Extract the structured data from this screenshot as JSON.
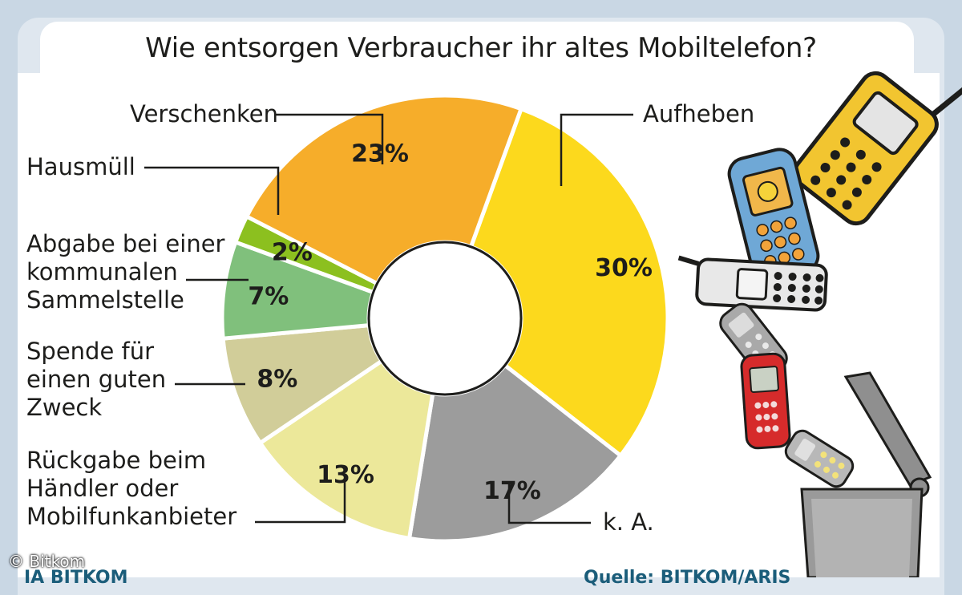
{
  "title": "Wie entsorgen Verbraucher ihr altes Mobiltelefon?",
  "chart_data": {
    "type": "pie",
    "style": "donut",
    "title": "Wie entsorgen Verbraucher ihr altes Mobiltelefon?",
    "slices": [
      {
        "label": "Aufheben",
        "value": 30,
        "value_label": "30%",
        "color": "#fcd91d"
      },
      {
        "label": "k. A.",
        "value": 17,
        "value_label": "17%",
        "color": "#9c9c9c"
      },
      {
        "label": "Rückgabe beim Händler oder Mobilfunkanbieter",
        "value": 13,
        "value_label": "13%",
        "color": "#ece89a"
      },
      {
        "label": "Spende für einen guten Zweck",
        "value": 8,
        "value_label": "8%",
        "color": "#d1cd99"
      },
      {
        "label": "Abgabe bei einer kommunalen Sammelstelle",
        "value": 7,
        "value_label": "7%",
        "color": "#80c07c"
      },
      {
        "label": "Hausmüll",
        "value": 2,
        "value_label": "2%",
        "color": "#8cc01f"
      },
      {
        "label": "Verschenken",
        "value": 23,
        "value_label": "23%",
        "color": "#f6ad2a"
      }
    ]
  },
  "labels": {
    "aufheben": "Aufheben",
    "ka": "k. A.",
    "rueckgabe": [
      "Rückgabe beim",
      "Händler oder",
      "Mobilfunkanbieter"
    ],
    "spende": [
      "Spende für",
      "einen guten",
      "Zweck"
    ],
    "abgabe": [
      "Abgabe bei einer",
      "kommunalen",
      "Sammelstelle"
    ],
    "hausmuell": "Hausmüll",
    "verschenken": "Verschenken"
  },
  "footer": {
    "left": "IA BITKOM",
    "right": "Quelle: BITKOM/ARIS",
    "copyright": "© Bitkom"
  }
}
